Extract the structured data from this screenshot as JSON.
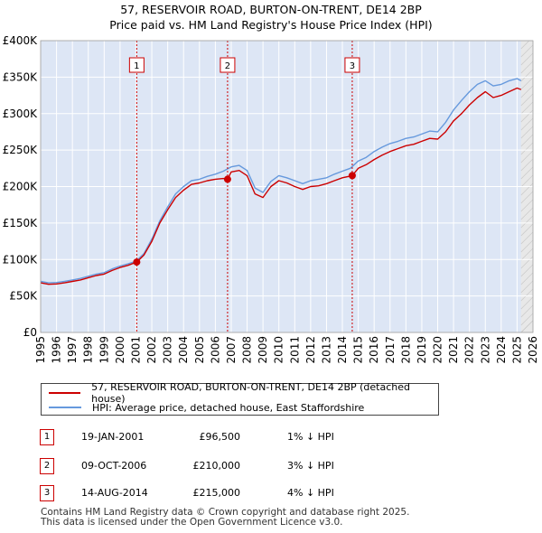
{
  "title": {
    "line1": "57, RESERVOIR ROAD, BURTON-ON-TRENT, DE14 2BP",
    "line2": "Price paid vs. HM Land Registry's House Price Index (HPI)"
  },
  "legend": {
    "red_label": "57, RESERVOIR ROAD, BURTON-ON-TRENT, DE14 2BP (detached house)",
    "blue_label": "HPI: Average price, detached house, East Staffordshire"
  },
  "sales": [
    {
      "num": "1",
      "date": "19-JAN-2001",
      "price": "£96,500",
      "hpi": "1% ↓ HPI"
    },
    {
      "num": "2",
      "date": "09-OCT-2006",
      "price": "£210,000",
      "hpi": "3% ↓ HPI"
    },
    {
      "num": "3",
      "date": "14-AUG-2014",
      "price": "£215,000",
      "hpi": "4% ↓ HPI"
    }
  ],
  "footer": {
    "line1": "Contains HM Land Registry data © Crown copyright and database right 2025.",
    "line2": "This data is licensed under the Open Government Licence v3.0."
  },
  "colors": {
    "red": "#cc0000",
    "blue": "#6699dd",
    "band": "#dde6f5",
    "grid": "#ffffff"
  },
  "chart_data": {
    "type": "line",
    "title": "Price paid vs. HM Land Registry's House Price Index (HPI)",
    "xlabel": "",
    "ylabel": "",
    "xlim": [
      1995,
      2026
    ],
    "ylim": [
      0,
      400000
    ],
    "yticks": [
      0,
      50000,
      100000,
      150000,
      200000,
      250000,
      300000,
      350000,
      400000
    ],
    "ytick_labels": [
      "£0",
      "£50K",
      "£100K",
      "£150K",
      "£200K",
      "£250K",
      "£300K",
      "£350K",
      "£400K"
    ],
    "xticks": [
      1995,
      1996,
      1997,
      1998,
      1999,
      2000,
      2001,
      2002,
      2003,
      2004,
      2005,
      2006,
      2007,
      2008,
      2009,
      2010,
      2011,
      2012,
      2013,
      2014,
      2015,
      2016,
      2017,
      2018,
      2019,
      2020,
      2021,
      2022,
      2023,
      2024,
      2025,
      2026
    ],
    "shaded_from": 2025.25,
    "series": [
      {
        "name": "57, RESERVOIR ROAD, BURTON-ON-TRENT, DE14 2BP (detached house)",
        "color": "#cc0000",
        "x": [
          1995.0,
          1995.5,
          1996.0,
          1996.5,
          1997.0,
          1997.5,
          1998.0,
          1998.5,
          1999.0,
          1999.5,
          2000.0,
          2000.5,
          2001.05,
          2001.5,
          2002.0,
          2002.5,
          2003.0,
          2003.5,
          2004.0,
          2004.5,
          2005.0,
          2005.5,
          2006.0,
          2006.5,
          2006.77,
          2007.0,
          2007.5,
          2008.0,
          2008.5,
          2009.0,
          2009.5,
          2010.0,
          2010.5,
          2011.0,
          2011.5,
          2012.0,
          2012.5,
          2013.0,
          2013.5,
          2014.0,
          2014.62,
          2015.0,
          2015.5,
          2016.0,
          2016.5,
          2017.0,
          2017.5,
          2018.0,
          2018.5,
          2019.0,
          2019.5,
          2020.0,
          2020.5,
          2021.0,
          2021.5,
          2022.0,
          2022.5,
          2023.0,
          2023.5,
          2024.0,
          2024.5,
          2025.0,
          2025.25
        ],
        "values": [
          68000,
          66000,
          66500,
          68000,
          70000,
          72000,
          75000,
          78000,
          80000,
          85000,
          89000,
          92000,
          96500,
          106000,
          125000,
          150000,
          168000,
          185000,
          195000,
          203000,
          205000,
          208000,
          210000,
          211000,
          210000,
          220000,
          222000,
          215000,
          190000,
          185000,
          200000,
          208000,
          205000,
          200000,
          196000,
          200000,
          201000,
          204000,
          208000,
          212000,
          215000,
          225000,
          230000,
          237000,
          243000,
          248000,
          252000,
          256000,
          258000,
          262000,
          266000,
          265000,
          275000,
          290000,
          300000,
          312000,
          322000,
          330000,
          322000,
          325000,
          330000,
          335000,
          333000
        ]
      },
      {
        "name": "HPI: Average price, detached house, East Staffordshire",
        "color": "#6699dd",
        "x": [
          1995.0,
          1995.5,
          1996.0,
          1996.5,
          1997.0,
          1997.5,
          1998.0,
          1998.5,
          1999.0,
          1999.5,
          2000.0,
          2000.5,
          2001.0,
          2001.5,
          2002.0,
          2002.5,
          2003.0,
          2003.5,
          2004.0,
          2004.5,
          2005.0,
          2005.5,
          2006.0,
          2006.5,
          2007.0,
          2007.5,
          2008.0,
          2008.5,
          2009.0,
          2009.5,
          2010.0,
          2010.5,
          2011.0,
          2011.5,
          2012.0,
          2012.5,
          2013.0,
          2013.5,
          2014.0,
          2014.5,
          2015.0,
          2015.5,
          2016.0,
          2016.5,
          2017.0,
          2017.5,
          2018.0,
          2018.5,
          2019.0,
          2019.5,
          2020.0,
          2020.5,
          2021.0,
          2021.5,
          2022.0,
          2022.5,
          2023.0,
          2023.5,
          2024.0,
          2024.5,
          2025.0,
          2025.25
        ],
        "values": [
          70000,
          68000,
          68500,
          70000,
          72000,
          74000,
          77000,
          80000,
          82000,
          87000,
          91000,
          94000,
          97500,
          108000,
          128000,
          153000,
          172000,
          190000,
          200000,
          208000,
          210000,
          214000,
          217000,
          221000,
          227000,
          229000,
          222000,
          198000,
          192000,
          207000,
          215000,
          212000,
          208000,
          204000,
          208000,
          210000,
          212000,
          217000,
          221000,
          225000,
          235000,
          240000,
          248000,
          254000,
          259000,
          262000,
          266000,
          268000,
          272000,
          276000,
          275000,
          288000,
          305000,
          318000,
          330000,
          340000,
          345000,
          338000,
          340000,
          345000,
          348000,
          345000
        ]
      }
    ],
    "markers": [
      {
        "label": "1",
        "x": 2001.05,
        "y": 96500
      },
      {
        "label": "2",
        "x": 2006.77,
        "y": 210000
      },
      {
        "label": "3",
        "x": 2014.62,
        "y": 215000
      }
    ]
  }
}
